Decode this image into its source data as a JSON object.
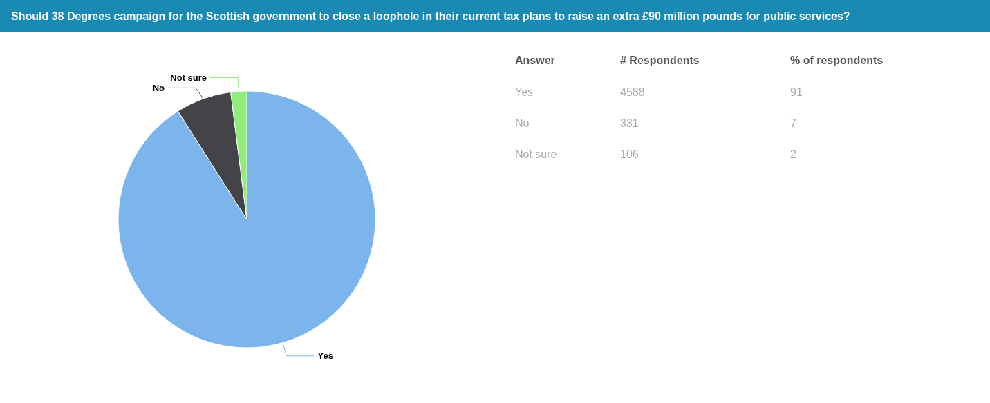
{
  "chart_data": {
    "type": "pie",
    "title": "Should 38 Degrees campaign for the Scottish government to close a loophole in their current tax plans to raise an extra £90 million pounds for public services?",
    "categories": [
      "Yes",
      "No",
      "Not sure"
    ],
    "values": [
      91,
      7,
      2
    ],
    "colors": [
      "#7cb5ec",
      "#434348",
      "#90ed7d"
    ],
    "annotations": [
      "Answer",
      "# Respondents",
      "% of respondents",
      "4588",
      "331",
      "106",
      "91",
      "7",
      "2"
    ],
    "legend": false
  }
}
